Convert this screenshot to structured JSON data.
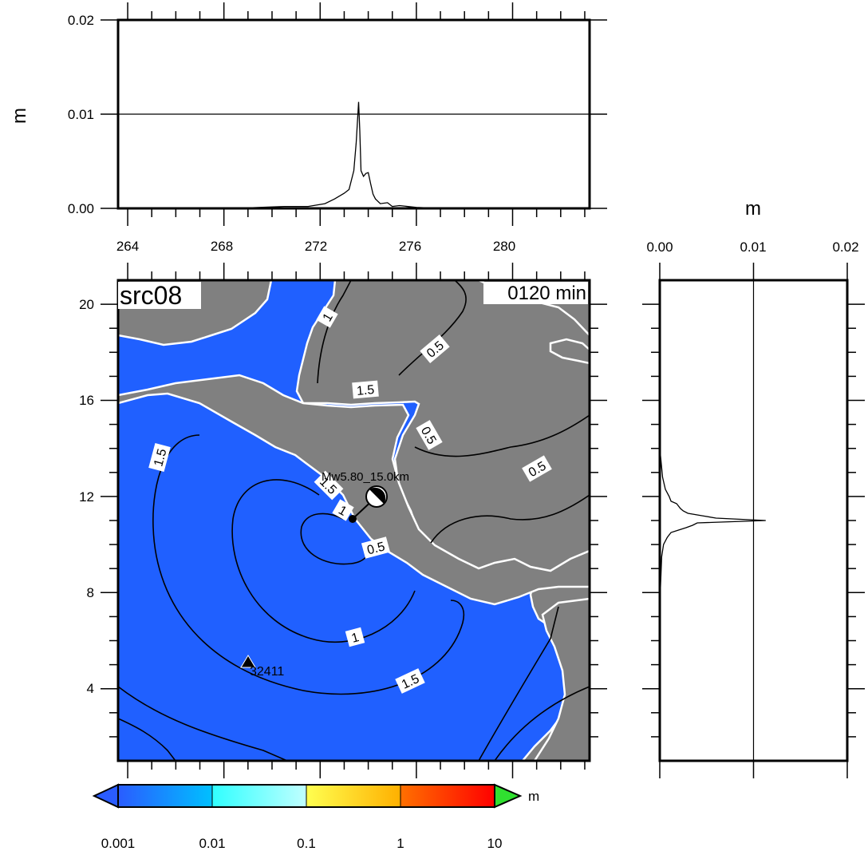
{
  "map": {
    "source_id": "src08",
    "time_label": "0120 min",
    "event_label": "Mw5.80_15.0km",
    "station_label": "32411",
    "lat_ticks": [
      "4",
      "8",
      "12",
      "16",
      "20"
    ],
    "contour_levels": [
      "0.5",
      "1",
      "1.5"
    ],
    "colors": {
      "ocean": "#2060ff",
      "land": "#808080",
      "coast": "#ffffff",
      "contour": "#000000"
    }
  },
  "top_panel": {
    "ylabel": "m",
    "y_ticks": [
      "0.00",
      "0.01",
      "0.02"
    ],
    "x_ticks": [
      "264",
      "268",
      "272",
      "276",
      "280"
    ]
  },
  "right_panel": {
    "xlabel": "m",
    "x_ticks": [
      "0.00",
      "0.01",
      "0.02"
    ]
  },
  "colorbar": {
    "unit": "m",
    "ticks": [
      "0.001",
      "0.01",
      "0.1",
      "1",
      "10"
    ],
    "colors": [
      "#2a5cff",
      "#1ea8ff",
      "#40ffff",
      "#b0ffff",
      "#ffff50",
      "#ffc000",
      "#ff6000",
      "#ff0000"
    ]
  },
  "chart_data": [
    {
      "type": "line",
      "title": "",
      "xlabel": "",
      "ylabel": "m",
      "xlim": [
        263.6,
        283.2
      ],
      "ylim": [
        0,
        0.02
      ],
      "grid": true,
      "x": [
        263.6,
        268.5,
        269.5,
        270.5,
        271.5,
        272.2,
        272.6,
        273.0,
        273.2,
        273.4,
        273.5,
        273.6,
        273.65,
        273.7,
        273.8,
        273.9,
        274.0,
        274.1,
        274.2,
        274.3,
        274.5,
        274.8,
        275.0,
        275.3,
        276.0,
        277.0,
        283.2
      ],
      "y": [
        0.0,
        0.0,
        0.0001,
        0.0002,
        0.0002,
        0.0005,
        0.001,
        0.0016,
        0.002,
        0.004,
        0.007,
        0.0113,
        0.0082,
        0.004,
        0.0034,
        0.0037,
        0.0038,
        0.0026,
        0.0015,
        0.001,
        0.0005,
        0.0006,
        0.0002,
        0.0003,
        0.0001,
        0.0,
        0.0
      ]
    },
    {
      "type": "line",
      "title": "",
      "xlabel": "m",
      "ylabel": "",
      "xlim": [
        0,
        0.02
      ],
      "ylim": [
        1,
        21
      ],
      "grid": true,
      "x": [
        0.0,
        0.0001,
        0.0003,
        0.0006,
        0.001,
        0.0012,
        0.0018,
        0.0022,
        0.0025,
        0.003,
        0.0045,
        0.006,
        0.0113,
        0.004,
        0.0035,
        0.0028,
        0.002,
        0.0012,
        0.0008,
        0.0004,
        0.0002,
        0.0001,
        0.0
      ],
      "y": [
        14.0,
        13.6,
        12.8,
        12.3,
        12.0,
        11.8,
        11.7,
        11.5,
        11.4,
        11.3,
        11.2,
        11.1,
        11.0,
        10.9,
        10.8,
        10.7,
        10.6,
        10.5,
        10.3,
        10.0,
        9.5,
        8.5,
        7.5
      ]
    }
  ]
}
